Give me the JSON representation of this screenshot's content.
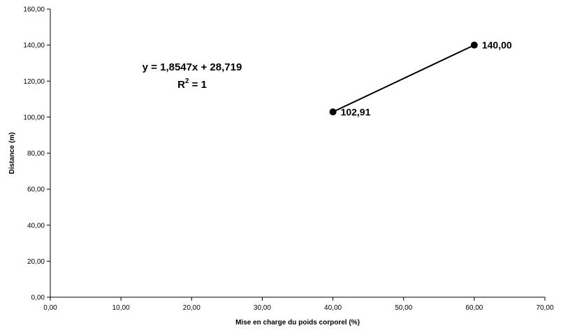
{
  "chart_data": {
    "type": "line",
    "title": "",
    "xlabel": "Mise en charge du poids corporel (%)",
    "ylabel": "Distance (m)",
    "xlim": [
      0,
      70
    ],
    "ylim": [
      0,
      160
    ],
    "xticks": [
      "0,00",
      "10,00",
      "20,00",
      "30,00",
      "40,00",
      "50,00",
      "60,00",
      "70,00"
    ],
    "yticks": [
      "0,00",
      "20,00",
      "40,00",
      "60,00",
      "80,00",
      "100,00",
      "120,00",
      "140,00",
      "160,00"
    ],
    "grid": false,
    "series": [
      {
        "x": [
          40,
          60
        ],
        "values": [
          102.91,
          140.0
        ],
        "labels": [
          "102,91",
          "140,00"
        ],
        "color": "#000000"
      }
    ],
    "annotations": {
      "trendline_equation": "y = 1,8547x + 28,719",
      "r_squared_prefix": "R",
      "r_squared_exponent": "2",
      "r_squared_suffix": " = 1"
    }
  }
}
